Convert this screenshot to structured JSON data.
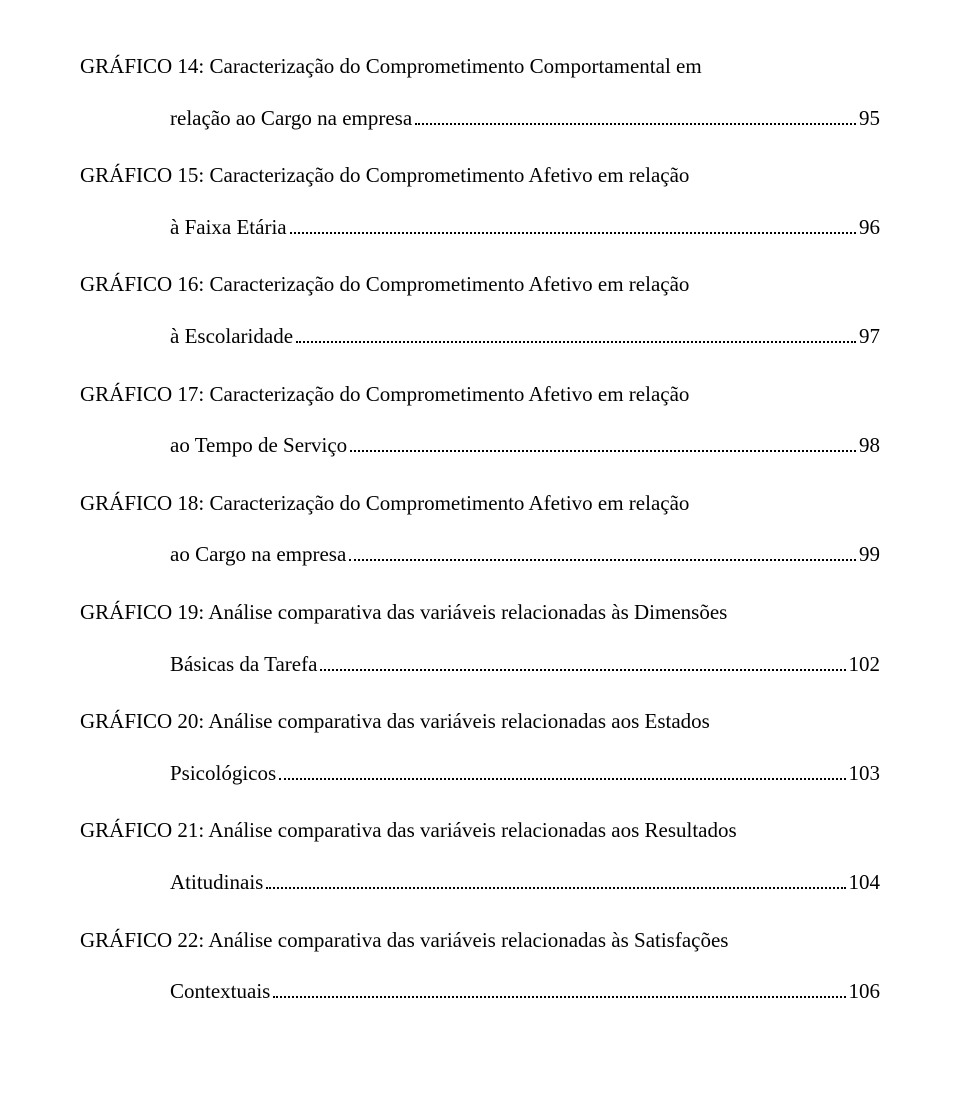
{
  "entries": [
    {
      "title_prefix": "GRÁFICO 14: ",
      "title_rest": "Caracterização do Comprometimento Comportamental em",
      "sub": "relação ao Cargo na empresa",
      "page": "95"
    },
    {
      "title_prefix": "GRÁFICO 15: ",
      "title_rest": "Caracterização do Comprometimento Afetivo em relação",
      "sub": "à Faixa Etária",
      "page": "96"
    },
    {
      "title_prefix": "GRÁFICO 16: ",
      "title_rest": "Caracterização do Comprometimento Afetivo em relação",
      "sub": "à Escolaridade",
      "page": "97"
    },
    {
      "title_prefix": "GRÁFICO 17: ",
      "title_rest": "Caracterização do Comprometimento Afetivo em relação",
      "sub": "ao Tempo de Serviço",
      "page": "98"
    },
    {
      "title_prefix": "GRÁFICO 18: ",
      "title_rest": "Caracterização do Comprometimento Afetivo em relação",
      "sub": "ao Cargo na empresa",
      "page": "99"
    },
    {
      "title_prefix": "GRÁFICO 19: ",
      "title_rest": "Análise comparativa das variáveis relacionadas às Dimensões",
      "sub": "Básicas da Tarefa",
      "page": "102"
    },
    {
      "title_prefix": "GRÁFICO 20: ",
      "title_rest": "Análise comparativa das variáveis relacionadas aos Estados",
      "sub": "Psicológicos",
      "page": "103"
    },
    {
      "title_prefix": "GRÁFICO 21: ",
      "title_rest": "Análise comparativa das variáveis relacionadas aos Resultados",
      "sub": "Atitudinais",
      "page": "104"
    },
    {
      "title_prefix": "GRÁFICO 22: ",
      "title_rest": "Análise comparativa das variáveis relacionadas às Satisfações",
      "sub": "Contextuais",
      "page": "106"
    }
  ]
}
